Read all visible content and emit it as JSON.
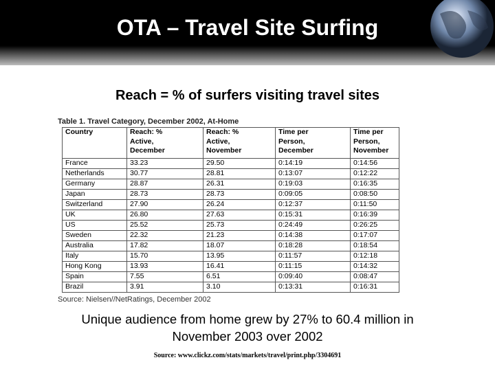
{
  "header": {
    "title": "OTA – Travel Site Surfing"
  },
  "subtitle": "Reach = % of surfers visiting travel sites",
  "table": {
    "caption": "Table 1. Travel Category, December 2002, At-Home",
    "columns": [
      [
        "Country"
      ],
      [
        "Reach: %",
        "Active,",
        "December"
      ],
      [
        "Reach: %",
        "Active,",
        "November"
      ],
      [
        "Time per",
        "Person,",
        "December"
      ],
      [
        "Time per",
        "Person,",
        "November"
      ]
    ],
    "rows": [
      [
        "France",
        "33.23",
        "29.50",
        "0:14:19",
        "0:14:56"
      ],
      [
        "Netherlands",
        "30.77",
        "28.81",
        "0:13:07",
        "0:12:22"
      ],
      [
        "Germany",
        "28.87",
        "26.31",
        "0:19:03",
        "0:16:35"
      ],
      [
        "Japan",
        "28.73",
        "28.73",
        "0:09:05",
        "0:08:50"
      ],
      [
        "Switzerland",
        "27.90",
        "26.24",
        "0:12:37",
        "0:11:50"
      ],
      [
        "UK",
        "26.80",
        "27.63",
        "0:15:31",
        "0:16:39"
      ],
      [
        "US",
        "25.52",
        "25.73",
        "0:24:49",
        "0:26:25"
      ],
      [
        "Sweden",
        "22.32",
        "21.23",
        "0:14:38",
        "0:17:07"
      ],
      [
        "Australia",
        "17.82",
        "18.07",
        "0:18:28",
        "0:18:54"
      ],
      [
        "Italy",
        "15.70",
        "13.95",
        "0:11:57",
        "0:12:18"
      ],
      [
        "Hong Kong",
        "13.93",
        "16.41",
        "0:11:15",
        "0:14:32"
      ],
      [
        "Spain",
        "7.55",
        "6.51",
        "0:09:40",
        "0:08:47"
      ],
      [
        "Brazil",
        "3.91",
        "3.10",
        "0:13:31",
        "0:16:31"
      ]
    ],
    "source": "Source: Nielsen//NetRatings, December 2002"
  },
  "body": [
    "Unique audience from home grew by 27% to 60.4 million in",
    "November 2003 over 2002"
  ],
  "footer": "Source: www.clickz.com/stats/markets/travel/print.php/3304691"
}
